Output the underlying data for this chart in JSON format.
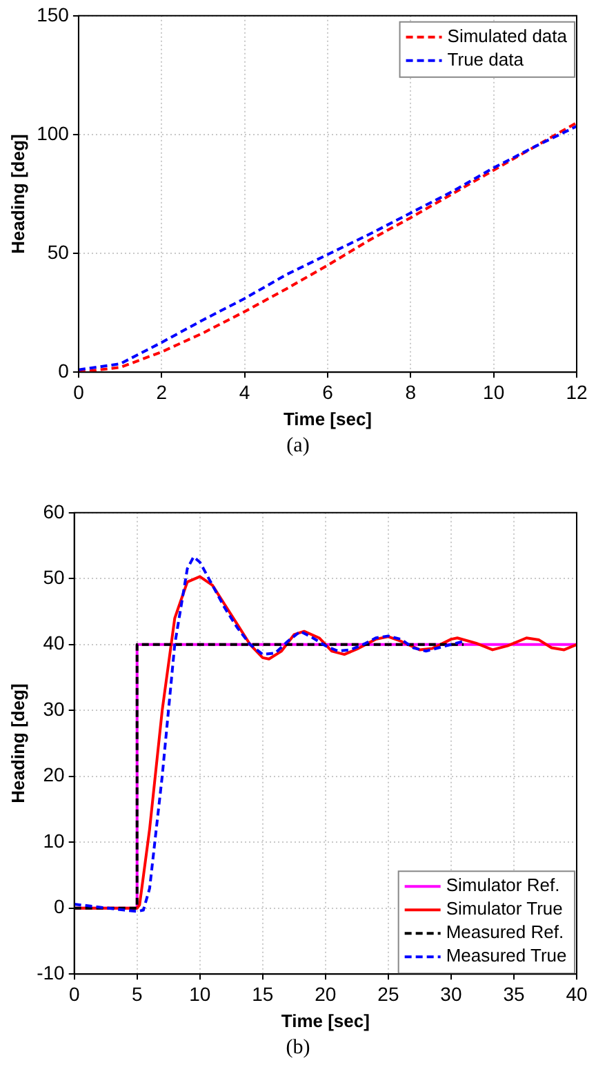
{
  "chart_data": [
    {
      "type": "line",
      "xlabel": "Time [sec]",
      "ylabel": "Heading [deg]",
      "xlim": [
        0,
        12
      ],
      "xticks": [
        0,
        2,
        4,
        6,
        8,
        10,
        12
      ],
      "ylim": [
        0,
        150
      ],
      "yticks": [
        0,
        50,
        100,
        150
      ],
      "grid": true,
      "legend": "top right",
      "annotations": [
        "(a)"
      ],
      "series": [
        {
          "name": "Simulated data",
          "color": "#ff0000",
          "line_style": "dashed",
          "x": [
            0,
            1,
            2,
            3,
            4,
            5,
            6,
            7,
            8,
            9,
            10,
            11,
            12
          ],
          "values": [
            0,
            2,
            8.5,
            16.5,
            25.5,
            35,
            45,
            55.5,
            65,
            75,
            85,
            95,
            105
          ]
        },
        {
          "name": "True data",
          "color": "#0000ff",
          "line_style": "dashed",
          "x": [
            0,
            1,
            2,
            3,
            4,
            5,
            6,
            7,
            8,
            9,
            10,
            11,
            12
          ],
          "values": [
            1,
            3.5,
            12.5,
            22,
            31,
            41,
            49.5,
            58,
            67,
            76,
            86,
            95,
            103.5
          ]
        }
      ]
    },
    {
      "type": "line",
      "xlabel": "Time [sec]",
      "ylabel": "Heading [deg]",
      "xlim": [
        0,
        40
      ],
      "xticks": [
        0,
        5,
        10,
        15,
        20,
        25,
        30,
        35,
        40
      ],
      "ylim": [
        -10,
        60
      ],
      "yticks": [
        -10,
        0,
        10,
        20,
        30,
        40,
        50,
        60
      ],
      "grid": true,
      "legend": "bottom right",
      "annotations": [
        "(b)"
      ],
      "series": [
        {
          "name": "Simulator Ref.",
          "color": "#ff00ff",
          "line_style": "solid",
          "x": [
            0,
            5,
            5,
            40
          ],
          "values": [
            0,
            0,
            40,
            40
          ]
        },
        {
          "name": "Simulator True",
          "color": "#ff0000",
          "line_style": "solid",
          "x": [
            0,
            5,
            5.2,
            6,
            7,
            8,
            9,
            10,
            11,
            12,
            13,
            14,
            15,
            15.5,
            16.5,
            17.5,
            18.3,
            19.5,
            20.5,
            21.5,
            22.5,
            24,
            25,
            26,
            27.5,
            28.5,
            30,
            30.5,
            32,
            33.3,
            34.5,
            36,
            37,
            38,
            39,
            40
          ],
          "values": [
            0,
            0,
            0.5,
            12,
            30,
            44,
            49.5,
            50.3,
            49,
            46,
            43,
            40,
            38,
            37.8,
            39,
            41.5,
            42,
            41,
            39,
            38.5,
            39.3,
            40.8,
            41.2,
            40.5,
            39.2,
            39.4,
            40.8,
            41,
            40.2,
            39.2,
            39.8,
            41,
            40.7,
            39.5,
            39.2,
            40
          ]
        },
        {
          "name": "Measured Ref.",
          "color": "#000000",
          "line_style": "dashed",
          "x": [
            0,
            5,
            5,
            31
          ],
          "values": [
            0,
            0,
            40,
            40
          ]
        },
        {
          "name": "Measured True",
          "color": "#0000ff",
          "line_style": "dashed",
          "x": [
            0,
            4,
            5,
            5.5,
            6,
            7,
            8,
            9,
            9.5,
            10,
            11,
            12,
            13,
            14,
            15,
            16,
            17,
            18,
            19,
            20,
            21,
            22,
            23,
            24,
            25,
            26,
            27,
            28,
            29,
            30,
            31
          ],
          "values": [
            0.6,
            -0.3,
            -0.5,
            -0.3,
            3,
            20,
            40,
            51.5,
            53.3,
            52.5,
            49,
            45.5,
            42.5,
            40,
            38.5,
            38.7,
            40.5,
            42,
            41,
            39.8,
            39,
            39.2,
            40,
            41,
            41.3,
            40.8,
            39.5,
            39,
            39.5,
            40,
            40.5
          ]
        }
      ]
    }
  ]
}
